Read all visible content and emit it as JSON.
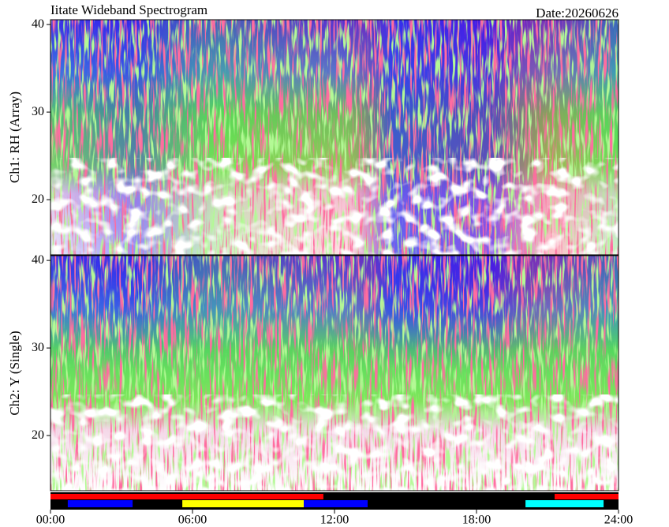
{
  "chart_data": {
    "type": "spectrogram",
    "title": "Iitate Wideband Spectrogram",
    "date": "Date:20260626",
    "xlim": [
      0,
      24
    ],
    "xticks": [
      {
        "value": 0,
        "label": "00:00"
      },
      {
        "value": 6,
        "label": "06:00"
      },
      {
        "value": 12,
        "label": "12:00"
      },
      {
        "value": 18,
        "label": "18:00"
      },
      {
        "value": 24,
        "label": "24:00"
      }
    ],
    "panels": [
      {
        "ylabel": "Ch1: RH (Array)",
        "ylim": [
          13.7,
          40.55
        ],
        "yticks": [
          20,
          30,
          40
        ]
      },
      {
        "ylabel": "Ch2: Y (Single)",
        "ylim": [
          13.7,
          40.55
        ],
        "yticks": [
          20,
          30,
          40
        ]
      }
    ],
    "status_rows": [
      {
        "segments": [
          {
            "start": 0,
            "end": 11.53,
            "color": "#ff0000"
          },
          {
            "start": 21.3,
            "end": 24,
            "color": "#ff0000"
          }
        ]
      },
      {
        "segments": [
          {
            "start": 0.73,
            "end": 3.47,
            "color": "#0000ff"
          },
          {
            "start": 5.57,
            "end": 10.7,
            "color": "#ffff00"
          },
          {
            "start": 10.7,
            "end": 13.4,
            "color": "#0000ff"
          },
          {
            "start": 20.07,
            "end": 23.37,
            "color": "#00ffff"
          }
        ]
      }
    ]
  }
}
